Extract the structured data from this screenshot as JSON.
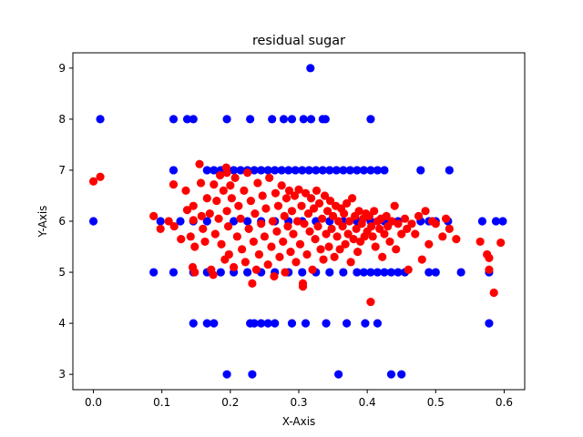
{
  "chart_data": {
    "type": "scatter",
    "title": "residual sugar",
    "xlabel": "X-Axis",
    "ylabel": "Y-Axis",
    "xlim": [
      -0.03,
      0.63
    ],
    "ylim": [
      2.7,
      9.3
    ],
    "xticks": [
      0.0,
      0.1,
      0.2,
      0.3,
      0.4,
      0.5,
      0.6
    ],
    "xtick_labels": [
      "0.0",
      "0.1",
      "0.2",
      "0.3",
      "0.4",
      "0.5",
      "0.6"
    ],
    "yticks": [
      3,
      4,
      5,
      6,
      7,
      8,
      9
    ],
    "ytick_labels": [
      "3",
      "4",
      "5",
      "6",
      "7",
      "8",
      "9"
    ],
    "grid": false,
    "series": [
      {
        "color": "#0000ff",
        "points": [
          [
            0.317,
            9
          ],
          [
            0.01,
            8
          ],
          [
            0.117,
            8
          ],
          [
            0.137,
            8
          ],
          [
            0.146,
            8
          ],
          [
            0.195,
            8
          ],
          [
            0.229,
            8
          ],
          [
            0.261,
            8
          ],
          [
            0.278,
            8
          ],
          [
            0.29,
            8
          ],
          [
            0.307,
            8
          ],
          [
            0.318,
            8
          ],
          [
            0.335,
            8
          ],
          [
            0.339,
            8
          ],
          [
            0.405,
            8
          ],
          [
            0.117,
            7
          ],
          [
            0.166,
            7
          ],
          [
            0.176,
            7
          ],
          [
            0.186,
            7
          ],
          [
            0.195,
            7
          ],
          [
            0.205,
            7
          ],
          [
            0.215,
            7
          ],
          [
            0.225,
            7
          ],
          [
            0.235,
            7
          ],
          [
            0.245,
            7
          ],
          [
            0.255,
            7
          ],
          [
            0.265,
            7
          ],
          [
            0.275,
            7
          ],
          [
            0.285,
            7
          ],
          [
            0.295,
            7
          ],
          [
            0.305,
            7
          ],
          [
            0.315,
            7
          ],
          [
            0.325,
            7
          ],
          [
            0.335,
            7
          ],
          [
            0.345,
            7
          ],
          [
            0.355,
            7
          ],
          [
            0.365,
            7
          ],
          [
            0.375,
            7
          ],
          [
            0.385,
            7
          ],
          [
            0.395,
            7
          ],
          [
            0.405,
            7
          ],
          [
            0.415,
            7
          ],
          [
            0.425,
            7
          ],
          [
            0.478,
            7
          ],
          [
            0.52,
            7
          ],
          [
            0.0,
            6
          ],
          [
            0.098,
            6
          ],
          [
            0.127,
            6
          ],
          [
            0.146,
            6
          ],
          [
            0.166,
            6
          ],
          [
            0.205,
            6
          ],
          [
            0.225,
            6
          ],
          [
            0.245,
            6
          ],
          [
            0.265,
            6
          ],
          [
            0.285,
            6
          ],
          [
            0.305,
            6
          ],
          [
            0.325,
            6
          ],
          [
            0.345,
            6
          ],
          [
            0.365,
            6
          ],
          [
            0.385,
            6
          ],
          [
            0.405,
            6
          ],
          [
            0.425,
            6
          ],
          [
            0.445,
            6
          ],
          [
            0.478,
            6
          ],
          [
            0.49,
            6
          ],
          [
            0.5,
            6
          ],
          [
            0.518,
            6
          ],
          [
            0.568,
            6
          ],
          [
            0.588,
            6
          ],
          [
            0.598,
            6
          ],
          [
            0.088,
            5
          ],
          [
            0.117,
            5
          ],
          [
            0.146,
            5
          ],
          [
            0.166,
            5
          ],
          [
            0.186,
            5
          ],
          [
            0.205,
            5
          ],
          [
            0.225,
            5
          ],
          [
            0.245,
            5
          ],
          [
            0.265,
            5
          ],
          [
            0.285,
            5
          ],
          [
            0.305,
            5
          ],
          [
            0.325,
            5
          ],
          [
            0.345,
            5
          ],
          [
            0.365,
            5
          ],
          [
            0.385,
            5
          ],
          [
            0.395,
            5
          ],
          [
            0.405,
            5
          ],
          [
            0.415,
            5
          ],
          [
            0.425,
            5
          ],
          [
            0.435,
            5
          ],
          [
            0.445,
            5
          ],
          [
            0.455,
            5
          ],
          [
            0.49,
            5
          ],
          [
            0.5,
            5
          ],
          [
            0.537,
            5
          ],
          [
            0.578,
            5
          ],
          [
            0.146,
            4
          ],
          [
            0.166,
            4
          ],
          [
            0.176,
            4
          ],
          [
            0.229,
            4
          ],
          [
            0.235,
            4
          ],
          [
            0.245,
            4
          ],
          [
            0.255,
            4
          ],
          [
            0.265,
            4
          ],
          [
            0.29,
            4
          ],
          [
            0.31,
            4
          ],
          [
            0.34,
            4
          ],
          [
            0.37,
            4
          ],
          [
            0.397,
            4
          ],
          [
            0.415,
            4
          ],
          [
            0.578,
            4
          ],
          [
            0.195,
            3
          ],
          [
            0.232,
            3
          ],
          [
            0.358,
            3
          ],
          [
            0.435,
            3
          ],
          [
            0.45,
            3
          ]
        ]
      },
      {
        "color": "#ff0000",
        "points": [
          [
            0.0,
            6.78
          ],
          [
            0.01,
            6.87
          ],
          [
            0.088,
            6.1
          ],
          [
            0.098,
            5.85
          ],
          [
            0.11,
            6.0
          ],
          [
            0.117,
            6.72
          ],
          [
            0.118,
            5.9
          ],
          [
            0.128,
            5.65
          ],
          [
            0.135,
            6.6
          ],
          [
            0.137,
            6.22
          ],
          [
            0.142,
            5.7
          ],
          [
            0.145,
            5.1
          ],
          [
            0.146,
            6.3
          ],
          [
            0.146,
            6.02
          ],
          [
            0.148,
            5.5
          ],
          [
            0.148,
            5.0
          ],
          [
            0.155,
            7.12
          ],
          [
            0.157,
            6.75
          ],
          [
            0.158,
            6.1
          ],
          [
            0.16,
            5.85
          ],
          [
            0.163,
            5.6
          ],
          [
            0.166,
            6.45
          ],
          [
            0.17,
            6.15
          ],
          [
            0.172,
            5.05
          ],
          [
            0.175,
            4.95
          ],
          [
            0.176,
            6.72
          ],
          [
            0.178,
            5.75
          ],
          [
            0.18,
            6.4
          ],
          [
            0.183,
            6.05
          ],
          [
            0.185,
            6.9
          ],
          [
            0.187,
            5.55
          ],
          [
            0.19,
            6.6
          ],
          [
            0.192,
            5.25
          ],
          [
            0.194,
            7.05
          ],
          [
            0.195,
            6.95
          ],
          [
            0.195,
            6.2
          ],
          [
            0.197,
            5.9
          ],
          [
            0.198,
            5.35
          ],
          [
            0.2,
            6.7
          ],
          [
            0.202,
            6.45
          ],
          [
            0.205,
            5.1
          ],
          [
            0.207,
            6.85
          ],
          [
            0.21,
            5.7
          ],
          [
            0.212,
            6.3
          ],
          [
            0.215,
            6.05
          ],
          [
            0.217,
            5.45
          ],
          [
            0.22,
            6.6
          ],
          [
            0.222,
            5.2
          ],
          [
            0.225,
            6.95
          ],
          [
            0.227,
            5.85
          ],
          [
            0.23,
            6.4
          ],
          [
            0.232,
            4.78
          ],
          [
            0.234,
            5.6
          ],
          [
            0.236,
            6.15
          ],
          [
            0.238,
            5.05
          ],
          [
            0.24,
            6.75
          ],
          [
            0.242,
            5.35
          ],
          [
            0.245,
            5.95
          ],
          [
            0.247,
            6.5
          ],
          [
            0.25,
            5.7
          ],
          [
            0.252,
            6.25
          ],
          [
            0.255,
            5.15
          ],
          [
            0.257,
            6.85
          ],
          [
            0.26,
            5.5
          ],
          [
            0.262,
            6.0
          ],
          [
            0.264,
            4.92
          ],
          [
            0.266,
            6.55
          ],
          [
            0.268,
            5.8
          ],
          [
            0.27,
            6.3
          ],
          [
            0.272,
            5.3
          ],
          [
            0.275,
            6.7
          ],
          [
            0.277,
            5.6
          ],
          [
            0.279,
            6.1
          ],
          [
            0.28,
            5.0
          ],
          [
            0.282,
            6.45
          ],
          [
            0.284,
            5.9
          ],
          [
            0.286,
            6.6
          ],
          [
            0.288,
            5.4
          ],
          [
            0.29,
            6.2
          ],
          [
            0.292,
            5.75
          ],
          [
            0.294,
            6.5
          ],
          [
            0.296,
            5.2
          ],
          [
            0.298,
            6.0
          ],
          [
            0.3,
            6.62
          ],
          [
            0.302,
            5.55
          ],
          [
            0.304,
            6.3
          ],
          [
            0.306,
            4.72
          ],
          [
            0.306,
            4.78
          ],
          [
            0.308,
            5.95
          ],
          [
            0.31,
            6.55
          ],
          [
            0.312,
            5.35
          ],
          [
            0.314,
            6.15
          ],
          [
            0.316,
            5.8
          ],
          [
            0.318,
            6.45
          ],
          [
            0.32,
            5.05
          ],
          [
            0.322,
            6.25
          ],
          [
            0.324,
            5.65
          ],
          [
            0.326,
            6.6
          ],
          [
            0.328,
            5.9
          ],
          [
            0.33,
            6.35
          ],
          [
            0.332,
            5.45
          ],
          [
            0.334,
            6.05
          ],
          [
            0.336,
            5.25
          ],
          [
            0.338,
            6.5
          ],
          [
            0.34,
            5.75
          ],
          [
            0.342,
            6.2
          ],
          [
            0.344,
            5.5
          ],
          [
            0.346,
            6.4
          ],
          [
            0.348,
            5.85
          ],
          [
            0.35,
            6.1
          ],
          [
            0.352,
            5.3
          ],
          [
            0.354,
            6.3
          ],
          [
            0.356,
            5.7
          ],
          [
            0.358,
            6.0
          ],
          [
            0.36,
            5.45
          ],
          [
            0.362,
            6.25
          ],
          [
            0.364,
            5.9
          ],
          [
            0.366,
            6.15
          ],
          [
            0.368,
            5.55
          ],
          [
            0.37,
            6.35
          ],
          [
            0.372,
            5.75
          ],
          [
            0.374,
            6.0
          ],
          [
            0.376,
            5.2
          ],
          [
            0.378,
            6.45
          ],
          [
            0.38,
            5.65
          ],
          [
            0.382,
            6.1
          ],
          [
            0.384,
            5.85
          ],
          [
            0.386,
            5.4
          ],
          [
            0.388,
            6.2
          ],
          [
            0.39,
            5.6
          ],
          [
            0.392,
            5.95
          ],
          [
            0.394,
            6.05
          ],
          [
            0.396,
            5.7
          ],
          [
            0.398,
            6.15
          ],
          [
            0.4,
            5.8
          ],
          [
            0.403,
            6.1
          ],
          [
            0.405,
            4.42
          ],
          [
            0.406,
            5.9
          ],
          [
            0.408,
            5.7
          ],
          [
            0.41,
            6.2
          ],
          [
            0.412,
            5.5
          ],
          [
            0.415,
            6.0
          ],
          [
            0.418,
            5.85
          ],
          [
            0.42,
            6.05
          ],
          [
            0.422,
            5.3
          ],
          [
            0.425,
            5.75
          ],
          [
            0.428,
            6.1
          ],
          [
            0.43,
            5.9
          ],
          [
            0.433,
            5.6
          ],
          [
            0.436,
            6.0
          ],
          [
            0.44,
            6.3
          ],
          [
            0.442,
            5.45
          ],
          [
            0.445,
            5.95
          ],
          [
            0.45,
            5.75
          ],
          [
            0.455,
            6.05
          ],
          [
            0.458,
            5.85
          ],
          [
            0.46,
            5.05
          ],
          [
            0.465,
            5.95
          ],
          [
            0.47,
            5.75
          ],
          [
            0.475,
            6.1
          ],
          [
            0.48,
            5.25
          ],
          [
            0.485,
            6.2
          ],
          [
            0.49,
            5.55
          ],
          [
            0.495,
            6.0
          ],
          [
            0.5,
            5.95
          ],
          [
            0.51,
            5.7
          ],
          [
            0.515,
            6.05
          ],
          [
            0.52,
            5.85
          ],
          [
            0.53,
            5.65
          ],
          [
            0.565,
            5.6
          ],
          [
            0.575,
            5.35
          ],
          [
            0.578,
            5.28
          ],
          [
            0.578,
            5.05
          ],
          [
            0.585,
            4.6
          ],
          [
            0.595,
            5.58
          ]
        ]
      }
    ]
  }
}
